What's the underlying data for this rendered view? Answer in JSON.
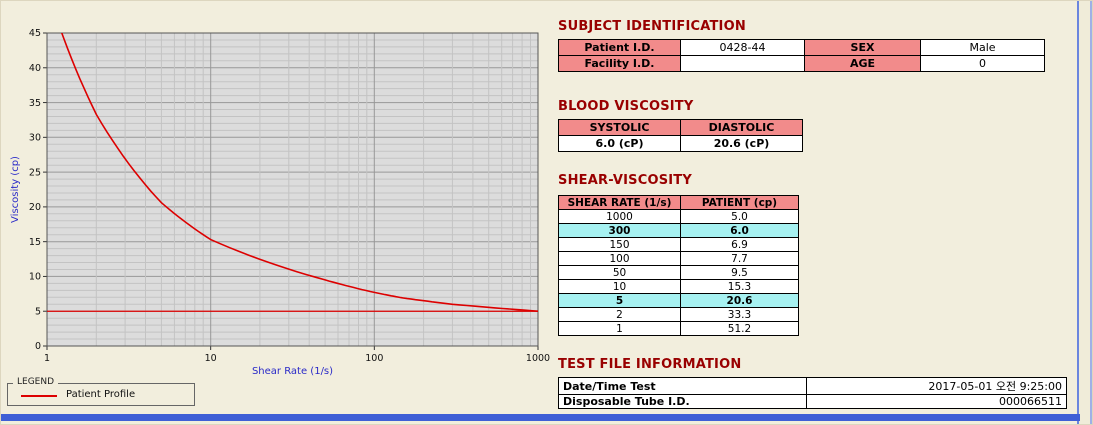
{
  "colors": {
    "background": "#f2eedd",
    "title_text": "#990000",
    "table_header_fill": "#f28b8b",
    "highlight_fill": "#a6f1f1",
    "accent_bar": "#3f5fd6",
    "curve_red": "#dd0000"
  },
  "chart_data": {
    "type": "line",
    "title": "",
    "xlabel": "Shear Rate (1/s)",
    "ylabel": "Viscosity (cp)",
    "x_scale": "log",
    "xlim": [
      1,
      1000
    ],
    "ylim": [
      0,
      45
    ],
    "x_ticks": [
      1,
      10,
      100,
      1000
    ],
    "y_ticks": [
      0,
      5,
      10,
      15,
      20,
      25,
      30,
      35,
      40,
      45
    ],
    "grid": true,
    "plot_bg": "#dcdcdc",
    "grid_minor_color": "#c3c3c3",
    "grid_major_color": "#989898",
    "axis_label_color": "#2a2ac8",
    "reference_line_y": 5.0,
    "series": [
      {
        "name": "Patient Profile",
        "color": "#dd0000",
        "x": [
          1,
          2,
          5,
          10,
          50,
          100,
          150,
          300,
          1000
        ],
        "y": [
          51.2,
          33.3,
          20.6,
          15.3,
          9.5,
          7.7,
          6.9,
          6.0,
          5.0
        ]
      }
    ],
    "legend": {
      "title": "LEGEND",
      "position": "bottom-left",
      "entries": [
        "Patient Profile"
      ]
    }
  },
  "subject_identification": {
    "title": "SUBJECT IDENTIFICATION",
    "row1": {
      "l1": "Patient I.D.",
      "v1": "0428-44",
      "l2": "SEX",
      "v2": "Male"
    },
    "row2": {
      "l1": "Facility I.D.",
      "v1": "",
      "l2": "AGE",
      "v2": "0"
    }
  },
  "blood_viscosity": {
    "title": "BLOOD VISCOSITY",
    "headers": [
      "SYSTOLIC",
      "DIASTOLIC"
    ],
    "values": [
      "6.0 (cP)",
      "20.6 (cP)"
    ]
  },
  "shear_viscosity": {
    "title": "SHEAR-VISCOSITY",
    "headers": [
      "SHEAR RATE (1/s)",
      "PATIENT (cp)"
    ],
    "rows": [
      {
        "rate": "1000",
        "cp": "5.0",
        "highlight": false
      },
      {
        "rate": "300",
        "cp": "6.0",
        "highlight": true
      },
      {
        "rate": "150",
        "cp": "6.9",
        "highlight": false
      },
      {
        "rate": "100",
        "cp": "7.7",
        "highlight": false
      },
      {
        "rate": "50",
        "cp": "9.5",
        "highlight": false
      },
      {
        "rate": "10",
        "cp": "15.3",
        "highlight": false
      },
      {
        "rate": "5",
        "cp": "20.6",
        "highlight": true
      },
      {
        "rate": "2",
        "cp": "33.3",
        "highlight": false
      },
      {
        "rate": "1",
        "cp": "51.2",
        "highlight": false
      }
    ]
  },
  "test_file_information": {
    "title": "TEST FILE INFORMATION",
    "rows": [
      {
        "label": "Date/Time Test",
        "value": "2017-05-01 오전 9:25:00"
      },
      {
        "label": "Disposable Tube I.D.",
        "value": "000066511"
      }
    ]
  }
}
